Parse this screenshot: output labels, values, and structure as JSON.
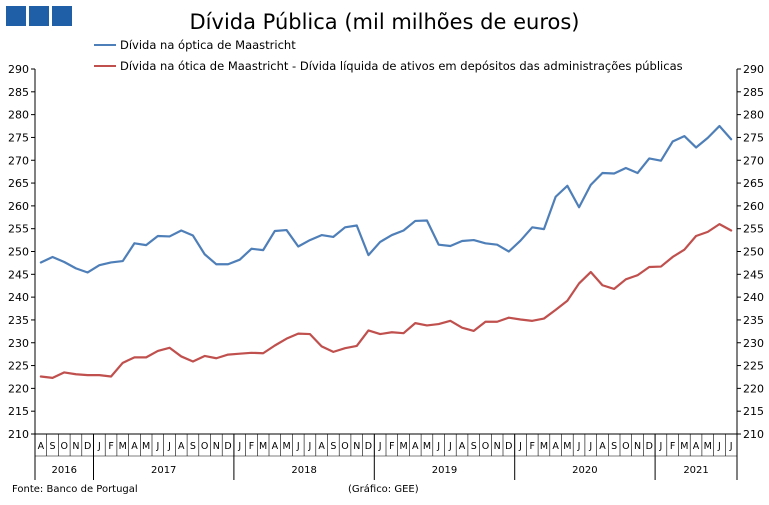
{
  "colors": {
    "logo": "#1f5fa8",
    "series1": "#4f7fb8",
    "series2": "#c0504d",
    "axis": "#000000",
    "grid": "#d0d0d0"
  },
  "logo_icon": "three-blue-squares-icon",
  "chart_data": {
    "type": "line",
    "title": "Dívida Pública (mil milhões de euros)",
    "ylim": [
      210,
      290
    ],
    "yticks": [
      210,
      215,
      220,
      225,
      230,
      235,
      240,
      245,
      250,
      255,
      260,
      265,
      270,
      275,
      280,
      285,
      290
    ],
    "grid": false,
    "legend_position": "top",
    "month_labels": [
      "A",
      "S",
      "O",
      "N",
      "D",
      "J",
      "F",
      "M",
      "A",
      "M",
      "J",
      "J",
      "A",
      "S",
      "O",
      "N",
      "D",
      "J",
      "F",
      "M",
      "A",
      "M",
      "J",
      "J",
      "A",
      "S",
      "O",
      "N",
      "D",
      "J",
      "F",
      "M",
      "A",
      "M",
      "J",
      "J",
      "A",
      "S",
      "O",
      "N",
      "D",
      "J",
      "F",
      "M",
      "A",
      "M",
      "J",
      "J",
      "A",
      "S",
      "O",
      "N",
      "D",
      "J",
      "F",
      "M",
      "A",
      "M",
      "J",
      "J"
    ],
    "years": [
      {
        "label": "2016",
        "start": 0,
        "count": 5
      },
      {
        "label": "2017",
        "start": 5,
        "count": 12
      },
      {
        "label": "2018",
        "start": 17,
        "count": 12
      },
      {
        "label": "2019",
        "start": 29,
        "count": 12
      },
      {
        "label": "2020",
        "start": 41,
        "count": 12
      },
      {
        "label": "2021",
        "start": 53,
        "count": 7
      }
    ],
    "series": [
      {
        "name": "Dívida na óptica de Maastricht",
        "values": [
          247.6,
          248.8,
          247.7,
          246.3,
          245.4,
          247.0,
          247.6,
          247.9,
          251.8,
          251.4,
          253.4,
          253.3,
          254.6,
          253.5,
          249.4,
          247.2,
          247.2,
          248.2,
          250.6,
          250.3,
          254.5,
          254.7,
          251.1,
          252.5,
          253.6,
          253.2,
          255.3,
          255.7,
          249.2,
          252.1,
          253.6,
          254.6,
          256.7,
          256.8,
          251.5,
          251.2,
          252.3,
          252.5,
          251.8,
          251.5,
          250.0,
          252.4,
          255.3,
          254.9,
          262.0,
          264.4,
          259.7,
          264.6,
          267.2,
          267.1,
          268.3,
          267.2,
          270.4,
          269.9,
          274.1,
          275.3,
          272.8,
          274.9,
          277.5,
          274.6
        ]
      },
      {
        "name": "Dívida na ótica de Maastricht - Dívida líquida de ativos em depósitos das administrações públicas",
        "values": [
          222.6,
          222.3,
          223.5,
          223.1,
          222.9,
          222.9,
          222.6,
          225.6,
          226.8,
          226.8,
          228.2,
          228.9,
          227.0,
          225.9,
          227.1,
          226.6,
          227.4,
          227.6,
          227.8,
          227.7,
          229.4,
          230.9,
          232.0,
          231.9,
          229.2,
          228.0,
          228.8,
          229.3,
          232.7,
          231.9,
          232.3,
          232.1,
          234.3,
          233.8,
          234.1,
          234.8,
          233.3,
          232.6,
          234.6,
          234.6,
          235.5,
          235.1,
          234.8,
          235.3,
          237.2,
          239.2,
          243.0,
          245.5,
          242.6,
          241.8,
          243.9,
          244.8,
          246.6,
          246.7,
          248.8,
          250.4,
          253.4,
          254.3,
          256.0,
          254.6
        ]
      }
    ]
  },
  "footer": {
    "source": "Fonte: Banco de Portugal",
    "credit": "(Gráfico: GEE)"
  }
}
